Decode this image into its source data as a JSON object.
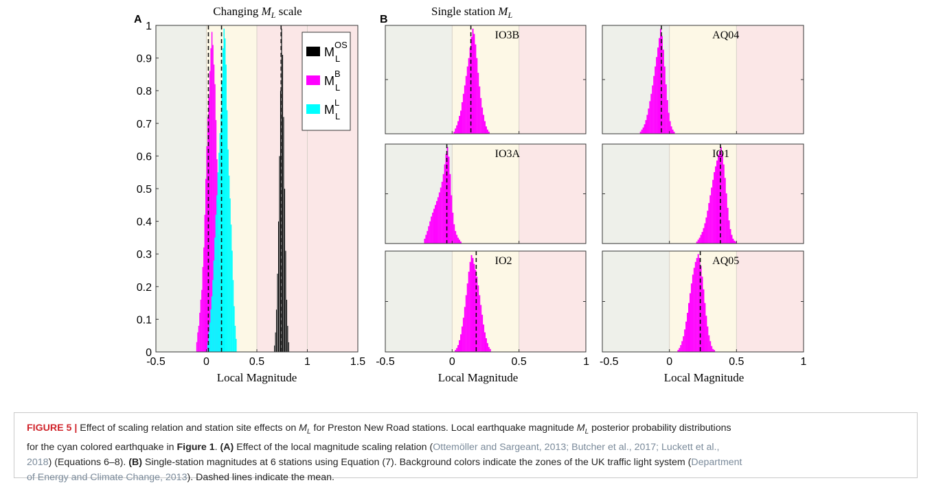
{
  "panel_letters": {
    "a": "A",
    "b": "B"
  },
  "zone_colors": {
    "green": "#eef0ea",
    "amber": "#fdf8e6",
    "red": "#fbe7e7"
  },
  "chart_data": [
    {
      "panel": "A",
      "type": "bar",
      "title_prefix": "Changing",
      "title_symbol": "M",
      "title_sub": "L",
      "title_suffix": "scale",
      "xlabel": "Local Magnitude",
      "ylabel": "",
      "xlim": [
        -0.5,
        1.5
      ],
      "ylim": [
        0,
        1
      ],
      "xticks": [
        -0.5,
        0,
        0.5,
        1,
        1.5
      ],
      "xtick_labels": [
        "-0.5",
        "0",
        "0.5",
        "1",
        "1.5"
      ],
      "yticks": [
        0,
        0.1,
        0.2,
        0.3,
        0.4,
        0.5,
        0.6,
        0.7,
        0.8,
        0.9,
        1
      ],
      "ytick_labels": [
        "0",
        "0.1",
        "0.2",
        "0.3",
        "0.4",
        "0.5",
        "0.6",
        "0.7",
        "0.8",
        "0.9",
        "1"
      ],
      "grid": false,
      "legend_position": "top-right",
      "zones": [
        {
          "from": -0.5,
          "to": 0,
          "color": "#eef0ea"
        },
        {
          "from": 0,
          "to": 0.5,
          "color": "#fdf8e6"
        },
        {
          "from": 0.5,
          "to": 1.5,
          "color": "#fbe7e7"
        }
      ],
      "series": [
        {
          "name": "M_L^B",
          "legend_base": "M",
          "legend_sup": "B",
          "legend_sub": "L",
          "color": "#ff00ff",
          "mean": 0.02,
          "bins_start": -0.1,
          "bin_width": 0.01,
          "values": [
            0.03,
            0.06,
            0.08,
            0.12,
            0.16,
            0.19,
            0.26,
            0.32,
            0.42,
            0.53,
            0.63,
            0.72,
            0.78,
            0.86,
            0.93,
            0.98,
            0.94,
            0.88,
            0.82,
            0.71,
            0.59,
            0.46,
            0.36,
            0.26,
            0.18,
            0.12,
            0.07,
            0.04
          ]
        },
        {
          "name": "M_L^L",
          "legend_base": "M",
          "legend_sup": "L",
          "legend_sub": "L",
          "color": "#00ffff",
          "mean": 0.15,
          "bins_start": 0.01,
          "bin_width": 0.01,
          "values": [
            0.03,
            0.06,
            0.09,
            0.13,
            0.17,
            0.22,
            0.28,
            0.35,
            0.42,
            0.48,
            0.55,
            0.61,
            0.67,
            0.73,
            0.83,
            0.93,
            0.99,
            0.96,
            0.88,
            0.74,
            0.62,
            0.54,
            0.47,
            0.39,
            0.31,
            0.22,
            0.14,
            0.08,
            0.04
          ]
        },
        {
          "name": "M_L^OS",
          "legend_base": "M",
          "legend_sup": "OS",
          "legend_sub": "L",
          "color": "#000000",
          "mean": 0.74,
          "bins_start": 0.67,
          "bin_width": 0.01,
          "values": [
            0.02,
            0.06,
            0.13,
            0.24,
            0.4,
            0.6,
            0.8,
            0.99,
            0.91,
            0.72,
            0.5,
            0.31,
            0.16,
            0.08,
            0.03
          ]
        }
      ],
      "legend_order": [
        "M_L^OS",
        "M_L^B",
        "M_L^L"
      ]
    },
    {
      "panel": "B",
      "type": "bar",
      "title_prefix": "Single station",
      "title_symbol": "M",
      "title_sub": "L",
      "title_suffix": "",
      "xlabel": "Local Magnitude",
      "xlim": [
        -0.5,
        1
      ],
      "xticks": [
        -0.5,
        0,
        0.5,
        1
      ],
      "xtick_labels": [
        "-0.5",
        "0",
        "0.5",
        "1"
      ],
      "grid": false,
      "zones": [
        {
          "from": -0.5,
          "to": 0,
          "color": "#eef0ea"
        },
        {
          "from": 0,
          "to": 0.5,
          "color": "#fdf8e6"
        },
        {
          "from": 0.5,
          "to": 1,
          "color": "#fbe7e7"
        }
      ],
      "bar_color": "#ff00ff",
      "bin_width": 0.01,
      "stations": [
        {
          "name": "IO3B",
          "mean": 0.14,
          "bins_start": 0.01,
          "values": [
            0.02,
            0.05,
            0.08,
            0.12,
            0.17,
            0.22,
            0.3,
            0.38,
            0.46,
            0.55,
            0.64,
            0.72,
            0.82,
            0.92,
            1.0,
            0.95,
            0.85,
            0.72,
            0.58,
            0.45,
            0.34,
            0.25,
            0.18,
            0.12,
            0.07,
            0.04,
            0.02
          ]
        },
        {
          "name": "IO3A",
          "mean": -0.04,
          "bins_start": -0.21,
          "values": [
            0.05,
            0.09,
            0.13,
            0.18,
            0.23,
            0.28,
            0.32,
            0.36,
            0.4,
            0.44,
            0.48,
            0.53,
            0.58,
            0.64,
            0.72,
            0.82,
            0.93,
            1.0,
            0.9,
            0.72,
            0.5,
            0.32,
            0.2,
            0.13,
            0.09,
            0.06,
            0.04,
            0.02
          ]
        },
        {
          "name": "IO2",
          "mean": 0.18,
          "bins_start": 0.02,
          "values": [
            0.02,
            0.04,
            0.07,
            0.12,
            0.18,
            0.26,
            0.35,
            0.46,
            0.58,
            0.7,
            0.82,
            0.92,
            0.99,
            0.96,
            0.9,
            0.84,
            0.77,
            0.68,
            0.58,
            0.48,
            0.38,
            0.28,
            0.2,
            0.14,
            0.09,
            0.05,
            0.03
          ]
        },
        {
          "name": "AQ04",
          "mean": -0.06,
          "bins_start": -0.22,
          "values": [
            0.02,
            0.04,
            0.06,
            0.09,
            0.13,
            0.18,
            0.24,
            0.31,
            0.38,
            0.46,
            0.55,
            0.64,
            0.73,
            0.82,
            0.91,
            1.0,
            0.93,
            0.8,
            0.64,
            0.47,
            0.32,
            0.2,
            0.12,
            0.07,
            0.04,
            0.02
          ]
        },
        {
          "name": "IO1",
          "mean": 0.38,
          "bins_start": 0.2,
          "values": [
            0.02,
            0.04,
            0.06,
            0.09,
            0.12,
            0.16,
            0.21,
            0.27,
            0.34,
            0.42,
            0.5,
            0.58,
            0.66,
            0.74,
            0.8,
            0.86,
            0.92,
            0.96,
            1.0,
            0.93,
            0.82,
            0.68,
            0.52,
            0.37,
            0.24,
            0.15,
            0.09,
            0.05,
            0.03,
            0.02
          ]
        },
        {
          "name": "AQ05",
          "mean": 0.23,
          "bins_start": 0.06,
          "values": [
            0.02,
            0.04,
            0.07,
            0.11,
            0.16,
            0.23,
            0.31,
            0.4,
            0.5,
            0.6,
            0.7,
            0.79,
            0.86,
            0.92,
            0.96,
            1.0,
            0.96,
            0.88,
            0.77,
            0.64,
            0.5,
            0.37,
            0.26,
            0.17,
            0.11,
            0.06,
            0.03,
            0.02
          ]
        }
      ]
    }
  ],
  "caption": {
    "figure_label": "FIGURE 5 |",
    "line1_a": " Effect of scaling relation and station site effects on ",
    "ml_symbol": "M",
    "ml_sub": "L",
    "line1_b": " for Preston New Road stations. Local earthquake magnitude ",
    "line1_c": " posterior probability distributions",
    "line2_a": "for the cyan colored earthquake in ",
    "line2_fig": "Figure 1",
    "line2_b": ". ",
    "line2_A": "(A)",
    "line2_c": " Effect of the local magnitude scaling relation (",
    "line2_ref": "Ottemöller and Sargeant, 2013; Butcher et al., 2017; Luckett et al.,",
    "line3_ref": "2018",
    "line3_a": ") (Equations 6–8). ",
    "line3_B": "(B)",
    "line3_b": " Single-station magnitudes at 6 stations using Equation (7). Background colors indicate the zones of the UK traffic light system (",
    "line3_ref2": "Department",
    "line4_ref": "of Energy and Climate Change, 2013",
    "line4_a": "). Dashed lines indicate the mean."
  }
}
